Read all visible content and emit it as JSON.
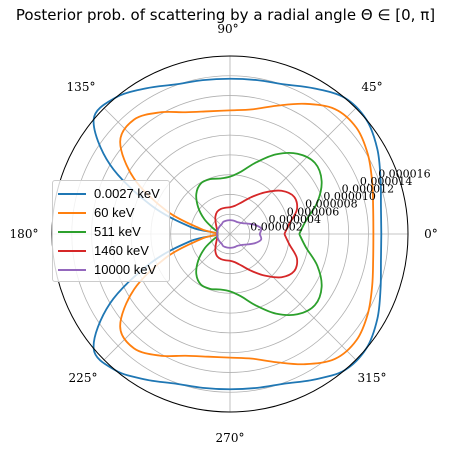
{
  "chart_data": {
    "type": "line",
    "projection": "polar",
    "title": "Posterior prob. of scattering by a radial angle Θ ∈ [0, π]",
    "theta_ticks": [
      "0°",
      "45°",
      "90°",
      "135°",
      "180°",
      "225°",
      "270°",
      "315°"
    ],
    "r_ticks": [
      "0.000002",
      "0.000004",
      "0.000006",
      "0.000008",
      "0.000010",
      "0.000012",
      "0.000014",
      "0.000016"
    ],
    "rlim": [
      0,
      1.8e-05
    ],
    "grid": true,
    "legend_position": "center-left",
    "theta_deg": [
      0,
      10,
      20,
      30,
      40,
      50,
      60,
      70,
      80,
      90,
      100,
      110,
      120,
      130,
      140,
      150,
      160,
      170,
      180
    ],
    "series": [
      {
        "name": "0.0027 keV",
        "color": "#1f77b4",
        "values": [
          1.53e-05,
          1.55e-05,
          1.62e-05,
          1.72e-05,
          1.8e-05,
          1.8e-05,
          1.7e-05,
          1.61e-05,
          1.58e-05,
          1.57e-05,
          1.58e-05,
          1.61e-05,
          1.7e-05,
          1.8e-05,
          1.8e-05,
          1.4e-05,
          8.5e-06,
          4e-06,
          1.3e-06
        ]
      },
      {
        "name": "60 keV",
        "color": "#ff7f0e",
        "values": [
          1.45e-05,
          1.47e-05,
          1.53e-05,
          1.61e-05,
          1.67e-05,
          1.65e-05,
          1.52e-05,
          1.38e-05,
          1.28e-05,
          1.25e-05,
          1.26e-05,
          1.31e-05,
          1.42e-05,
          1.51e-05,
          1.45e-05,
          1.12e-05,
          6.8e-06,
          3e-06,
          1.3e-06
        ]
      },
      {
        "name": "511 keV",
        "color": "#2ca02c",
        "values": [
          7e-06,
          7.8e-06,
          9.4e-06,
          1.07e-05,
          1.12e-05,
          1.06e-05,
          9.3e-06,
          7.7e-06,
          6.4e-06,
          5.8e-06,
          5.7e-06,
          5.9e-06,
          5.9e-06,
          5.3e-06,
          4.2e-06,
          3e-06,
          1.9e-06,
          1.3e-06,
          1.3e-06
        ]
      },
      {
        "name": "1460 keV",
        "color": "#d62728",
        "values": [
          5.5e-06,
          6.1e-06,
          7.2e-06,
          7.5e-06,
          6.8e-06,
          5.5e-06,
          4.3e-06,
          3.4e-06,
          2.9e-06,
          2.7e-06,
          2.7e-06,
          2.7e-06,
          2.6e-06,
          2.3e-06,
          1.9e-06,
          1.6e-06,
          1.4e-06,
          1.3e-06,
          1.3e-06
        ]
      },
      {
        "name": "10000 keV",
        "color": "#9467bd",
        "values": [
          3e-06,
          3.2e-06,
          2.7e-06,
          2.1e-06,
          1.7e-06,
          1.5e-06,
          1.4e-06,
          1.4e-06,
          1.4e-06,
          1.4e-06,
          1.4e-06,
          1.4e-06,
          1.4e-06,
          1.3e-06,
          1.3e-06,
          1.3e-06,
          1.3e-06,
          1.3e-06,
          1.3e-06
        ]
      }
    ]
  }
}
